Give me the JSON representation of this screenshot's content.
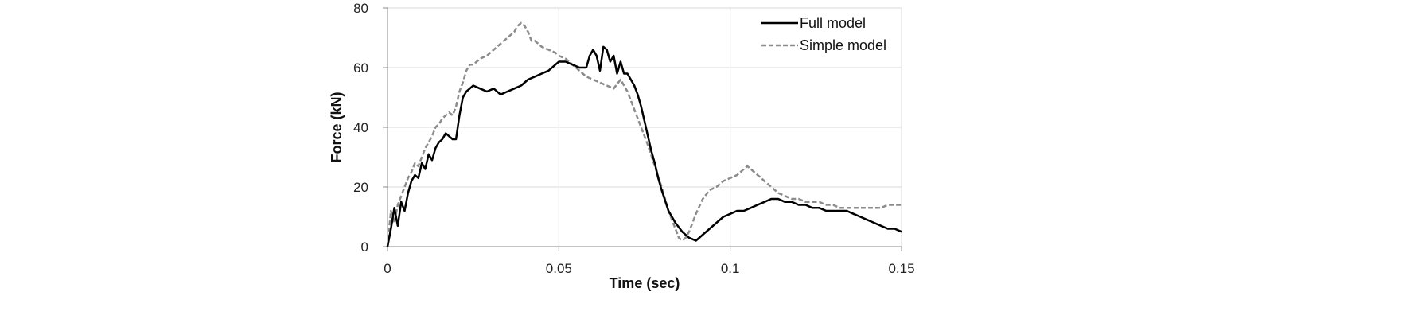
{
  "chart_data": {
    "type": "line",
    "title": "",
    "xlabel": "Time (sec)",
    "ylabel": "Force (kN)",
    "xlim": [
      0,
      0.15
    ],
    "ylim": [
      0,
      80
    ],
    "xticks": [
      0,
      0.05,
      0.1,
      0.15
    ],
    "xtick_labels": [
      "0",
      "0.05",
      "0.1",
      "0.15"
    ],
    "yticks": [
      0,
      20,
      40,
      60,
      80
    ],
    "ytick_labels": [
      "0",
      "20",
      "40",
      "60",
      "80"
    ],
    "grid": true,
    "legend_position": "top-right",
    "series": [
      {
        "name": "Full model",
        "color": "#000000",
        "dash": "solid",
        "x": [
          0,
          0.001,
          0.002,
          0.003,
          0.004,
          0.005,
          0.006,
          0.007,
          0.008,
          0.009,
          0.01,
          0.011,
          0.012,
          0.013,
          0.014,
          0.015,
          0.016,
          0.017,
          0.018,
          0.019,
          0.02,
          0.021,
          0.022,
          0.023,
          0.024,
          0.025,
          0.027,
          0.029,
          0.031,
          0.033,
          0.035,
          0.037,
          0.039,
          0.041,
          0.043,
          0.045,
          0.047,
          0.049,
          0.05,
          0.052,
          0.054,
          0.056,
          0.058,
          0.059,
          0.06,
          0.061,
          0.062,
          0.063,
          0.064,
          0.065,
          0.066,
          0.067,
          0.068,
          0.069,
          0.07,
          0.071,
          0.072,
          0.073,
          0.074,
          0.075,
          0.076,
          0.077,
          0.078,
          0.079,
          0.08,
          0.082,
          0.084,
          0.086,
          0.088,
          0.09,
          0.092,
          0.094,
          0.096,
          0.098,
          0.1,
          0.102,
          0.104,
          0.106,
          0.108,
          0.11,
          0.112,
          0.114,
          0.116,
          0.118,
          0.12,
          0.122,
          0.124,
          0.126,
          0.128,
          0.13,
          0.132,
          0.134,
          0.136,
          0.138,
          0.14,
          0.142,
          0.144,
          0.146,
          0.148,
          0.15
        ],
        "y": [
          0,
          6,
          13,
          7,
          15,
          12,
          18,
          22,
          24,
          23,
          28,
          26,
          31,
          29,
          33,
          35,
          36,
          38,
          37,
          36,
          36,
          44,
          50,
          52,
          53,
          54,
          53,
          52,
          53,
          51,
          52,
          53,
          54,
          56,
          57,
          58,
          59,
          61,
          62,
          62,
          61,
          60,
          60,
          64,
          66,
          64,
          59,
          67,
          66,
          62,
          64,
          58,
          62,
          58,
          58,
          56,
          54,
          51,
          47,
          42,
          37,
          32,
          28,
          23,
          19,
          12,
          8,
          5,
          3,
          2,
          4,
          6,
          8,
          10,
          11,
          12,
          12,
          13,
          14,
          15,
          16,
          16,
          15,
          15,
          14,
          14,
          13,
          13,
          12,
          12,
          12,
          12,
          11,
          10,
          9,
          8,
          7,
          6,
          6,
          5
        ]
      },
      {
        "name": "Simple model",
        "color": "#8c8c8c",
        "dash": "dashed",
        "x": [
          0,
          0.001,
          0.002,
          0.003,
          0.004,
          0.005,
          0.006,
          0.007,
          0.008,
          0.009,
          0.01,
          0.011,
          0.012,
          0.013,
          0.014,
          0.015,
          0.016,
          0.017,
          0.018,
          0.019,
          0.02,
          0.021,
          0.022,
          0.023,
          0.024,
          0.025,
          0.027,
          0.029,
          0.031,
          0.033,
          0.035,
          0.037,
          0.038,
          0.039,
          0.04,
          0.041,
          0.042,
          0.043,
          0.045,
          0.047,
          0.049,
          0.05,
          0.052,
          0.054,
          0.056,
          0.058,
          0.06,
          0.062,
          0.064,
          0.066,
          0.068,
          0.07,
          0.072,
          0.074,
          0.076,
          0.078,
          0.08,
          0.082,
          0.084,
          0.085,
          0.086,
          0.087,
          0.088,
          0.09,
          0.092,
          0.094,
          0.096,
          0.098,
          0.1,
          0.102,
          0.104,
          0.105,
          0.106,
          0.108,
          0.11,
          0.112,
          0.114,
          0.116,
          0.118,
          0.12,
          0.122,
          0.124,
          0.126,
          0.128,
          0.13,
          0.132,
          0.134,
          0.136,
          0.138,
          0.14,
          0.142,
          0.144,
          0.146,
          0.148,
          0.15
        ],
        "y": [
          0,
          12,
          8,
          14,
          17,
          20,
          23,
          25,
          28,
          27,
          30,
          33,
          35,
          37,
          40,
          41,
          43,
          44,
          45,
          44,
          47,
          52,
          55,
          59,
          61,
          61,
          63,
          64,
          66,
          68,
          70,
          72,
          74,
          75,
          74,
          72,
          69,
          69,
          67,
          66,
          65,
          64,
          63,
          61,
          59,
          57,
          56,
          55,
          54,
          53,
          56,
          52,
          46,
          40,
          34,
          27,
          20,
          12,
          6,
          3,
          2,
          3,
          5,
          11,
          16,
          19,
          20,
          22,
          23,
          24,
          26,
          27,
          26,
          24,
          22,
          20,
          18,
          17,
          16,
          16,
          15,
          15,
          15,
          14,
          14,
          13,
          13,
          13,
          13,
          13,
          13,
          13,
          14,
          14,
          14
        ]
      }
    ]
  }
}
